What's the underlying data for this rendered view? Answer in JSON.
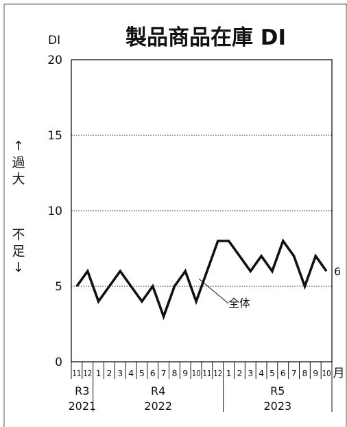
{
  "chart_data": {
    "type": "line",
    "title": "製品商品在庫 DI",
    "ylabel": "DI",
    "ylim": [
      0,
      20
    ],
    "yticks": [
      0,
      5,
      10,
      15,
      20
    ],
    "grid": "horizontal dotted at 5, 10, 15",
    "x": [
      "11",
      "12",
      "1",
      "2",
      "3",
      "4",
      "5",
      "6",
      "7",
      "8",
      "9",
      "10",
      "11",
      "12",
      "1",
      "2",
      "3",
      "4",
      "5",
      "6",
      "7",
      "8",
      "9",
      "10"
    ],
    "x_unit": "月",
    "series": [
      {
        "name": "全体",
        "color": "#111111",
        "values": [
          5,
          6,
          4,
          5,
          6,
          5,
          4,
          5,
          3,
          5,
          6,
          4,
          6,
          8,
          8,
          7,
          6,
          7,
          6,
          8,
          7,
          5,
          7,
          6
        ]
      }
    ],
    "end_value_label": "6",
    "year_groups": [
      {
        "era": "R3",
        "year": "2021",
        "start": 0,
        "end": 1
      },
      {
        "era": "R4",
        "year": "2022",
        "start": 2,
        "end": 13
      },
      {
        "era": "R5",
        "year": "2023",
        "start": 14,
        "end": 23
      }
    ],
    "side_label_top": [
      "↑",
      "過",
      "大"
    ],
    "side_label_bottom": [
      "不",
      "足",
      "↓"
    ]
  }
}
